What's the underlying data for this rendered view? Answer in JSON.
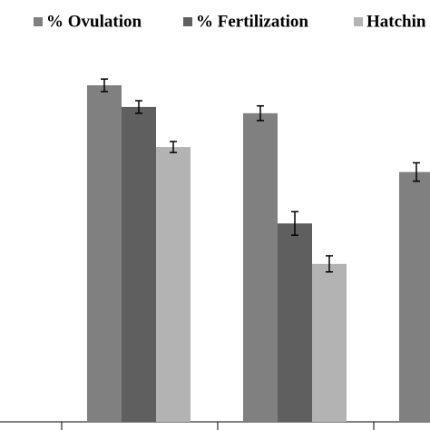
{
  "chart_data": {
    "type": "bar",
    "categories": [
      null,
      null,
      null
    ],
    "ylim": [
      0,
      100
    ],
    "series": [
      {
        "name": "% Ovulation",
        "color": "#808080",
        "values": [
          91.6,
          84,
          68
        ],
        "errors": [
          1.7,
          2,
          2.5
        ]
      },
      {
        "name": "% Fertilization",
        "color": "#5f5f5f",
        "values": [
          85.7,
          54,
          null
        ],
        "errors": [
          1.7,
          3.2,
          null
        ]
      },
      {
        "name": "Hatchin",
        "color": "#b3b3b3",
        "values": [
          74.8,
          43,
          null
        ],
        "errors": [
          1.5,
          2.2,
          null
        ]
      }
    ]
  }
}
